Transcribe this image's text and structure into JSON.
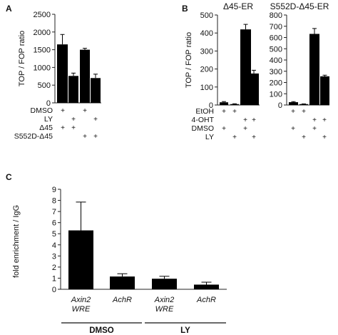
{
  "panels": {
    "A": {
      "letter": "A"
    },
    "B": {
      "letter": "B"
    },
    "C": {
      "letter": "C"
    }
  },
  "chart_data": [
    {
      "id": "A",
      "type": "bar",
      "ylabel": "TOP / FOP ratio",
      "ylim": [
        0,
        2500
      ],
      "yticks": [
        "0",
        "500",
        "1000",
        "1500",
        "2000",
        "2500"
      ],
      "values": [
        1650,
        760,
        1500,
        700
      ],
      "errors": [
        280,
        80,
        40,
        110
      ],
      "color": "#000000",
      "conditions": [
        {
          "label": "DMSO",
          "marks": [
            "+",
            "",
            "+",
            ""
          ]
        },
        {
          "label": "LY",
          "marks": [
            "",
            "+",
            "",
            "+"
          ]
        },
        {
          "label": "Δ45",
          "marks": [
            "+",
            "+",
            "",
            ""
          ]
        },
        {
          "label": "S552D-Δ45",
          "marks": [
            "",
            "",
            "+",
            "+"
          ]
        }
      ]
    },
    {
      "id": "B1",
      "type": "bar",
      "title": "Δ45-ER",
      "ylabel": "TOP / FOP ratio",
      "ylim": [
        0,
        500
      ],
      "yticks": [
        "0",
        "100",
        "200",
        "300",
        "400",
        "500"
      ],
      "values": [
        15,
        5,
        420,
        175
      ],
      "errors": [
        4,
        2,
        28,
        18
      ],
      "color": "#000000",
      "conditions": [
        {
          "label": "EtOH",
          "marks": [
            "+",
            "+",
            "",
            ""
          ]
        },
        {
          "label": "4-OHT",
          "marks": [
            "",
            "",
            "+",
            "+"
          ]
        },
        {
          "label": "DMSO",
          "marks": [
            "+",
            "",
            "+",
            ""
          ]
        },
        {
          "label": "LY",
          "marks": [
            "",
            "+",
            "",
            "+"
          ]
        }
      ]
    },
    {
      "id": "B2",
      "type": "bar",
      "title": "S552D-Δ45-ER",
      "ylim": [
        0,
        800
      ],
      "yticks": [
        "0",
        "100",
        "200",
        "300",
        "400",
        "500",
        "600",
        "700",
        "800"
      ],
      "values": [
        25,
        8,
        632,
        255
      ],
      "errors": [
        5,
        2,
        48,
        10
      ],
      "color": "#000000",
      "conditions": [
        {
          "label": "EtOH",
          "marks": [
            "+",
            "+",
            "",
            ""
          ]
        },
        {
          "label": "4-OHT",
          "marks": [
            "",
            "",
            "+",
            "+"
          ]
        },
        {
          "label": "DMSO",
          "marks": [
            "+",
            "",
            "+",
            ""
          ]
        },
        {
          "label": "LY",
          "marks": [
            "",
            "+",
            "",
            "+"
          ]
        }
      ]
    },
    {
      "id": "C",
      "type": "bar",
      "ylabel": "fold enrichment / IgG",
      "ylim": [
        0,
        9
      ],
      "yticks": [
        "0",
        "1",
        "2",
        "3",
        "4",
        "5",
        "6",
        "7",
        "8",
        "9"
      ],
      "categories": [
        [
          "Axin2",
          "WRE"
        ],
        [
          "AchR"
        ],
        [
          "Axin2",
          "WRE"
        ],
        [
          "AchR"
        ]
      ],
      "values": [
        5.3,
        1.15,
        0.95,
        0.42
      ],
      "errors": [
        2.55,
        0.25,
        0.22,
        0.22
      ],
      "color": "#000000",
      "groups": [
        "DMSO",
        "LY"
      ]
    }
  ]
}
